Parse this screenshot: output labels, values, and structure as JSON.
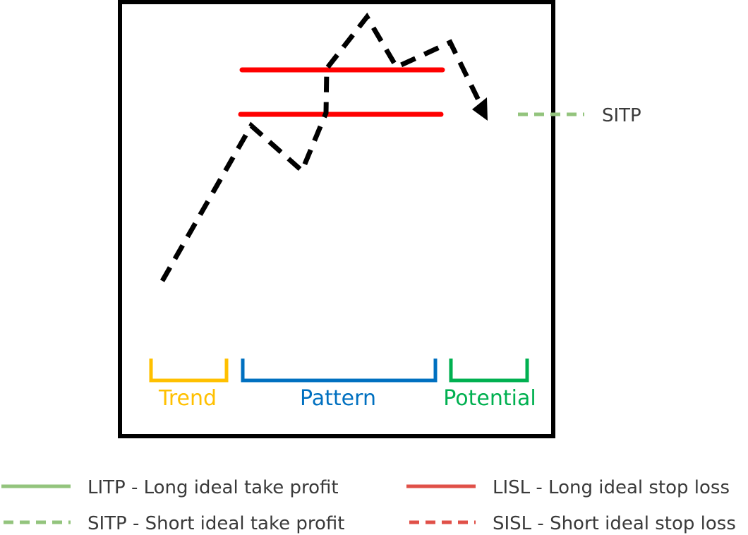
{
  "diagram": {
    "phases": {
      "trend": "Trend",
      "pattern": "Pattern",
      "potential": "Potential"
    },
    "target_label": "SITP"
  },
  "legend": {
    "litp": "LITP - Long ideal take profit",
    "lisl": "LISL - Long ideal stop loss",
    "sitp": "SITP - Short ideal take profit",
    "sisl": "SISL - Short ideal stop loss"
  },
  "colors": {
    "frame": "#000000",
    "price_path": "#000000",
    "stop_loss_red": "#ff0000",
    "legend_red": "#e05048",
    "take_profit_green": "#93c47d",
    "trend": "#ffc000",
    "pattern": "#0070c0",
    "potential": "#00b050",
    "text": "#3a3a3a"
  }
}
